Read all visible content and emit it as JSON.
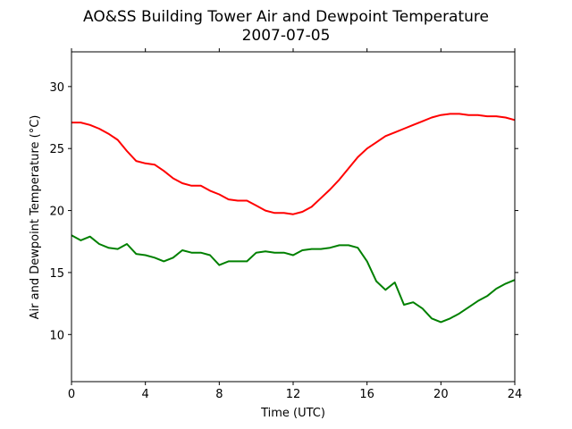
{
  "chart_data": {
    "type": "line",
    "title": "AO&SS Building Tower Air and Dewpoint Temperature",
    "subtitle": "2007-07-05",
    "xlabel": "Time (UTC)",
    "ylabel": "Air and Dewpoint Temperature (°C)",
    "xlim": [
      0,
      24
    ],
    "ylim": [
      6.2,
      32.8
    ],
    "xticks": [
      0,
      4,
      8,
      12,
      16,
      20,
      24
    ],
    "yticks": [
      10,
      15,
      20,
      25,
      30
    ],
    "grid": false,
    "legend": "none",
    "series": [
      {
        "color": "#ff0000",
        "x": [
          0,
          0.5,
          1,
          1.5,
          2,
          2.5,
          3,
          3.5,
          4,
          4.5,
          5,
          5.5,
          6,
          6.5,
          7,
          7.5,
          8,
          8.5,
          9,
          9.5,
          10,
          10.5,
          11,
          11.5,
          12,
          12.5,
          13,
          13.5,
          14,
          14.5,
          15,
          15.5,
          16,
          16.5,
          17,
          17.5,
          18,
          18.5,
          19,
          19.5,
          20,
          20.5,
          21,
          21.5,
          22,
          22.5,
          23,
          23.5,
          24
        ],
        "values": [
          27.1,
          27.1,
          26.9,
          26.6,
          26.2,
          25.7,
          24.8,
          24.0,
          23.8,
          23.7,
          23.2,
          22.6,
          22.2,
          22.0,
          22.0,
          21.6,
          21.3,
          20.9,
          20.8,
          20.8,
          20.4,
          20.0,
          19.8,
          19.8,
          19.7,
          19.9,
          20.3,
          21.0,
          21.7,
          22.5,
          23.4,
          24.3,
          25.0,
          25.5,
          26.0,
          26.3,
          26.6,
          26.9,
          27.2,
          27.5,
          27.7,
          27.8,
          27.8,
          27.7,
          27.7,
          27.6,
          27.6,
          27.5,
          27.3
        ]
      },
      {
        "color": "#008000",
        "x": [
          0,
          0.5,
          1,
          1.5,
          2,
          2.5,
          3,
          3.5,
          4,
          4.5,
          5,
          5.5,
          6,
          6.5,
          7,
          7.5,
          8,
          8.5,
          9,
          9.5,
          10,
          10.5,
          11,
          11.5,
          12,
          12.5,
          13,
          13.5,
          14,
          14.5,
          15,
          15.5,
          16,
          16.5,
          17,
          17.5,
          18,
          18.5,
          19,
          19.5,
          20,
          20.5,
          21,
          21.5,
          22,
          22.5,
          23,
          23.5,
          24
        ],
        "values": [
          18.0,
          17.6,
          17.9,
          17.3,
          17.0,
          16.9,
          17.3,
          16.5,
          16.4,
          16.2,
          15.9,
          16.2,
          16.8,
          16.6,
          16.6,
          16.4,
          15.6,
          15.9,
          15.9,
          15.9,
          16.6,
          16.7,
          16.6,
          16.6,
          16.4,
          16.8,
          16.9,
          16.9,
          17.0,
          17.2,
          17.2,
          17.0,
          15.9,
          14.3,
          13.6,
          14.2,
          12.4,
          12.6,
          12.1,
          11.3,
          11.0,
          11.3,
          11.7,
          12.2,
          12.7,
          13.1,
          13.7,
          14.1,
          14.4
        ]
      }
    ]
  }
}
